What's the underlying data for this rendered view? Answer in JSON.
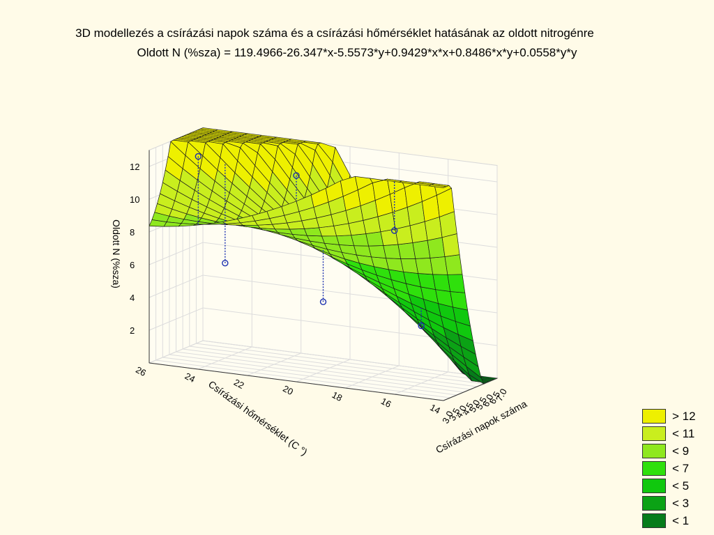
{
  "title": "3D modellezés a  csírázási napok száma és a csírázási hőmérséklet hatásának az oldott nitrogénre",
  "subtitle": "Oldott N (%sza) = 119.4966-26.347*x-5.5573*y+0.9429*x*x+0.8486*x*y+0.0558*y*y",
  "chart_data": {
    "type": "surface3d",
    "formula": {
      "intercept": 119.4966,
      "x": -26.347,
      "y": -5.5573,
      "xx": 0.9429,
      "xy": 0.8486,
      "yy": 0.0558
    },
    "x_axis": {
      "label": "Csírázási napok száma",
      "range": [
        3.0,
        7.0
      ],
      "ticks": [
        "3.0",
        "3.5",
        "4.0",
        "4.5",
        "5.0",
        "5.5",
        "6.0",
        "6.5",
        "7.0"
      ]
    },
    "y_axis": {
      "label": "Csírázási hőmérséklet (C   °)",
      "range": [
        14,
        26
      ],
      "ticks": [
        "14",
        "16",
        "18",
        "20",
        "22",
        "24",
        "26"
      ]
    },
    "z_axis": {
      "label": "Oldott N (%sza)",
      "range": [
        0,
        13
      ],
      "ticks": [
        "2",
        "4",
        "6",
        "8",
        "10",
        "12"
      ]
    },
    "observed_points": [
      {
        "x": 3.0,
        "y": 16,
        "z": 10.0
      },
      {
        "x": 3.0,
        "y": 20,
        "z": 12.6
      },
      {
        "x": 3.0,
        "y": 24,
        "z": 13.0
      },
      {
        "x": 5.0,
        "y": 16,
        "z": 3.5
      },
      {
        "x": 5.0,
        "y": 20,
        "z": 4.2
      },
      {
        "x": 5.0,
        "y": 24,
        "z": 5.8
      }
    ],
    "legend": [
      {
        "label": "> 12",
        "color": "#eef000"
      },
      {
        "label": "< 11",
        "color": "#c9ee1e"
      },
      {
        "label": "< 9",
        "color": "#8fe81e"
      },
      {
        "label": "< 7",
        "color": "#2fe00c"
      },
      {
        "label": "< 5",
        "color": "#10c80e"
      },
      {
        "label": "< 3",
        "color": "#0ba215"
      },
      {
        "label": "< 1",
        "color": "#067c1a"
      }
    ],
    "grid": true
  }
}
